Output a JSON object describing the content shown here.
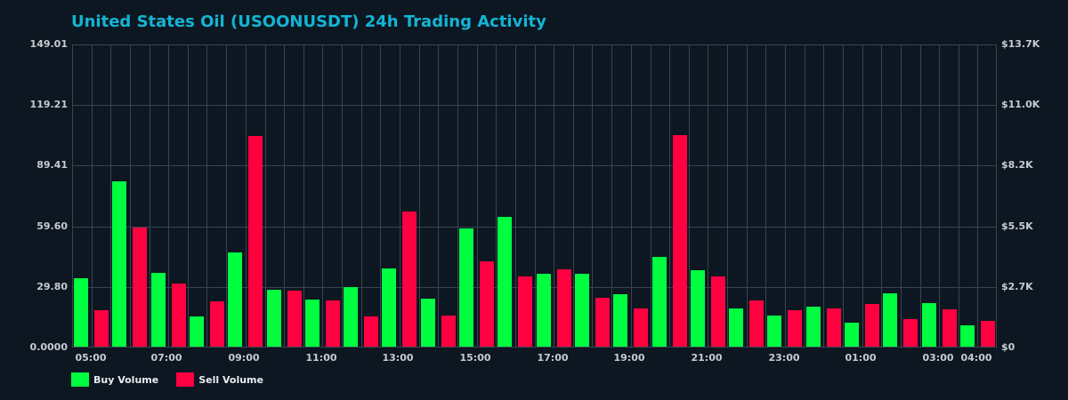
{
  "title": "United States Oil (USOONUSDT) 24h Trading Activity",
  "colors": {
    "background": "#0d1721",
    "title": "#13b5d4",
    "buy": "#00ff41",
    "sell": "#ff0040",
    "grid": "#3a4450",
    "tick_text": "#c8ccd0"
  },
  "legend": [
    {
      "label": "Buy Volume",
      "color": "#00ff41"
    },
    {
      "label": "Sell Volume",
      "color": "#ff0040"
    }
  ],
  "chart_data": {
    "type": "bar",
    "title": "United States Oil (USOONUSDT) 24h Trading Activity",
    "xlabel": "",
    "ylabel": "",
    "ylim": [
      0,
      149.01
    ],
    "y_ticks_left": [
      "0.0000",
      "29.80",
      "59.60",
      "89.41",
      "119.21",
      "149.01"
    ],
    "y_ticks_right": [
      "$0",
      "$2.7K",
      "$5.5K",
      "$8.2K",
      "$11.0K",
      "$13.7K"
    ],
    "x_tick_labels": [
      "05:00",
      "07:00",
      "09:00",
      "11:00",
      "13:00",
      "15:00",
      "17:00",
      "19:00",
      "21:00",
      "23:00",
      "01:00",
      "03:00",
      "04:00"
    ],
    "grid": true,
    "legend_position": "bottom-left",
    "categories": [
      "05:00",
      "06:00",
      "07:00",
      "08:00",
      "09:00",
      "10:00",
      "11:00",
      "12:00",
      "13:00",
      "14:00",
      "15:00",
      "16:00",
      "17:00",
      "18:00",
      "19:00",
      "20:00",
      "21:00",
      "22:00",
      "23:00",
      "00:00",
      "01:00",
      "02:00",
      "03:00",
      "04:00"
    ],
    "series": [
      {
        "name": "Buy Volume",
        "color": "#00ff41",
        "values": [
          33.6,
          81.3,
          36.3,
          14.9,
          46.3,
          28.0,
          23.2,
          29.3,
          38.4,
          23.6,
          58.1,
          63.8,
          35.8,
          35.8,
          25.8,
          44.1,
          37.6,
          18.8,
          15.3,
          19.7,
          11.8,
          26.2,
          21.4,
          10.5
        ]
      },
      {
        "name": "Sell Volume",
        "color": "#ff0040",
        "values": [
          17.9,
          58.5,
          31.0,
          22.3,
          103.5,
          27.5,
          22.7,
          14.9,
          66.4,
          15.3,
          41.9,
          34.5,
          38.0,
          24.0,
          18.8,
          104.0,
          34.5,
          22.7,
          17.9,
          18.8,
          21.0,
          13.5,
          18.3,
          12.7
        ]
      }
    ]
  }
}
